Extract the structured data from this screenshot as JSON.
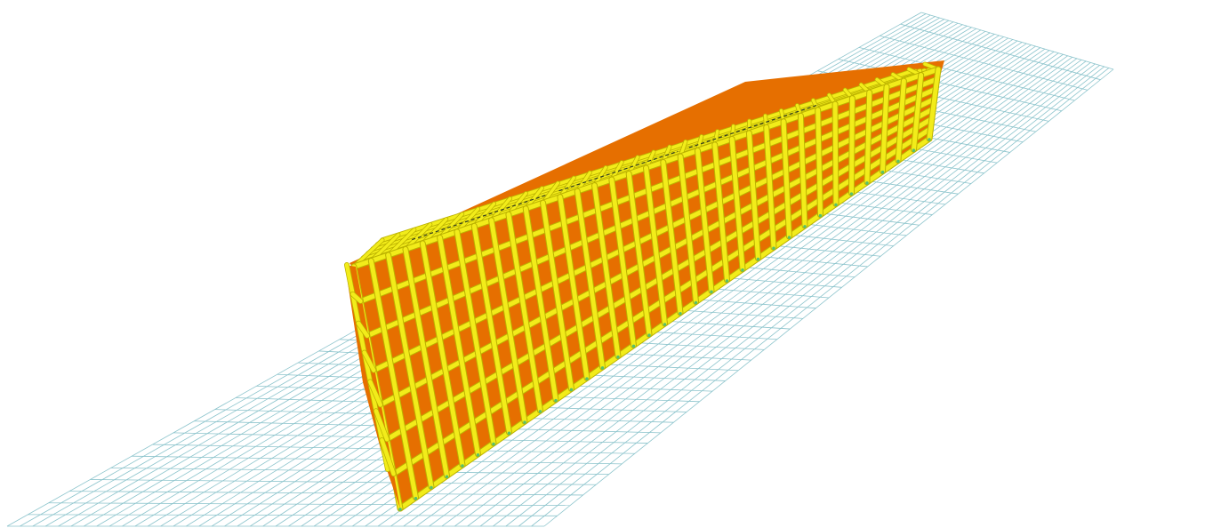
{
  "view": {
    "background": "#ffffff",
    "grid_color": "#8cc4cc",
    "beam_color": "#f2ec1a",
    "beam_outline_color": "#bcb200",
    "slab_color": "#e66f00",
    "slab_edge_color": "#c85a00",
    "joint_color": "#59c06a"
  },
  "model": {
    "bays_long": 34,
    "bays_short": 6,
    "stories": 7
  }
}
